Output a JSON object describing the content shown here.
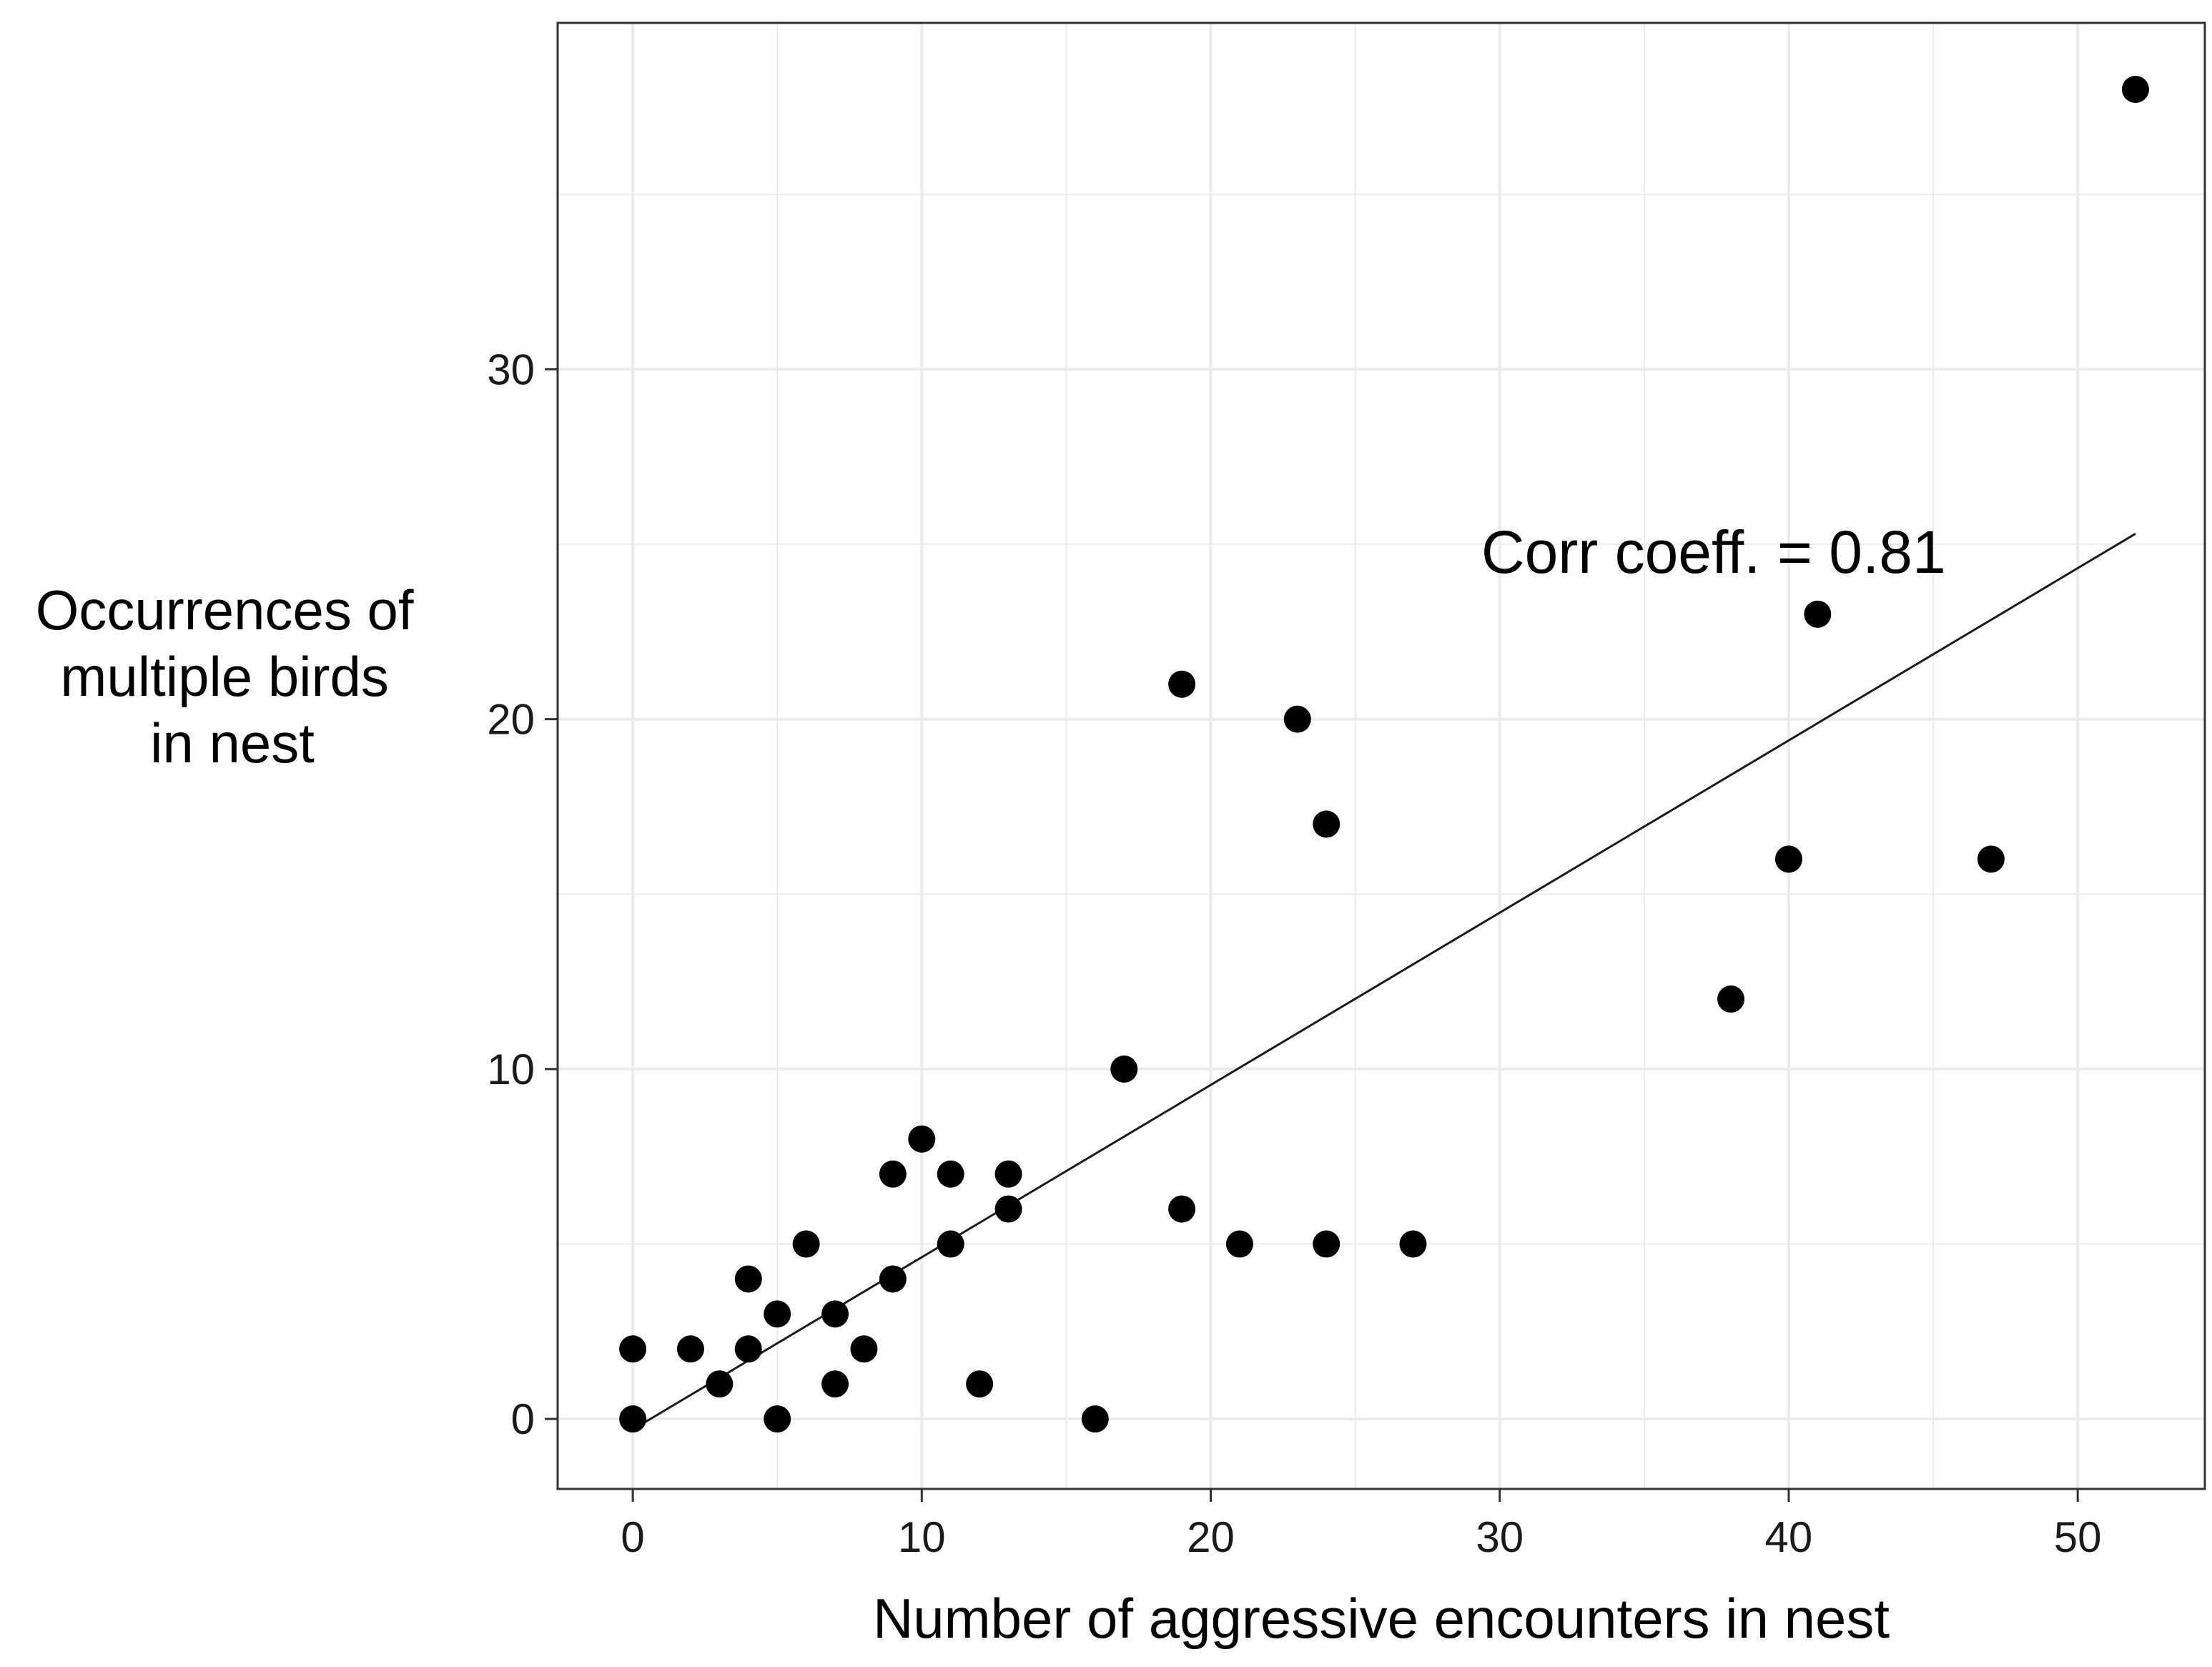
{
  "chart_data": {
    "type": "scatter",
    "title": "",
    "xlabel": "Number of aggressive encounters in nest",
    "ylabel_lines": [
      "Occurrences of",
      "multiple birds",
      "in nest"
    ],
    "xlim": [
      -2.6,
      54.4
    ],
    "ylim": [
      -2,
      39.9
    ],
    "x_ticks": [
      0,
      10,
      20,
      30,
      40,
      50
    ],
    "y_ticks": [
      0,
      10,
      20,
      30
    ],
    "x_minor_grid": [
      5,
      15,
      25,
      35,
      45
    ],
    "y_minor_grid": [
      5,
      15,
      25,
      35
    ],
    "grid": true,
    "legend": "none",
    "points": [
      {
        "x": 0,
        "y": 0
      },
      {
        "x": 0,
        "y": 2
      },
      {
        "x": 2,
        "y": 2
      },
      {
        "x": 3,
        "y": 1
      },
      {
        "x": 4,
        "y": 4
      },
      {
        "x": 4,
        "y": 2
      },
      {
        "x": 5,
        "y": 3
      },
      {
        "x": 5,
        "y": 0
      },
      {
        "x": 6,
        "y": 5
      },
      {
        "x": 7,
        "y": 3
      },
      {
        "x": 7,
        "y": 1
      },
      {
        "x": 8,
        "y": 2
      },
      {
        "x": 9,
        "y": 7
      },
      {
        "x": 9,
        "y": 4
      },
      {
        "x": 10,
        "y": 8
      },
      {
        "x": 11,
        "y": 7
      },
      {
        "x": 11,
        "y": 5
      },
      {
        "x": 12,
        "y": 1
      },
      {
        "x": 13,
        "y": 7
      },
      {
        "x": 13,
        "y": 6
      },
      {
        "x": 16,
        "y": 0
      },
      {
        "x": 17,
        "y": 10
      },
      {
        "x": 19,
        "y": 21
      },
      {
        "x": 19,
        "y": 6
      },
      {
        "x": 21,
        "y": 5
      },
      {
        "x": 23,
        "y": 20
      },
      {
        "x": 24,
        "y": 17
      },
      {
        "x": 24,
        "y": 5
      },
      {
        "x": 27,
        "y": 5
      },
      {
        "x": 38,
        "y": 12
      },
      {
        "x": 40,
        "y": 16
      },
      {
        "x": 41,
        "y": 23
      },
      {
        "x": 47,
        "y": 16
      },
      {
        "x": 52,
        "y": 38
      }
    ],
    "fit_line": {
      "x0": 0,
      "y0": -0.3,
      "x1": 52,
      "y1": 25.3
    },
    "annotation": {
      "text": "Corr coeff. = 0.81",
      "x": 37.4,
      "y": 24.8
    }
  },
  "colors": {
    "points": "#000000",
    "fit_line": "#1a1a1a",
    "grid": "#ebebeb",
    "panel_border": "#333333",
    "background": "#ffffff"
  }
}
